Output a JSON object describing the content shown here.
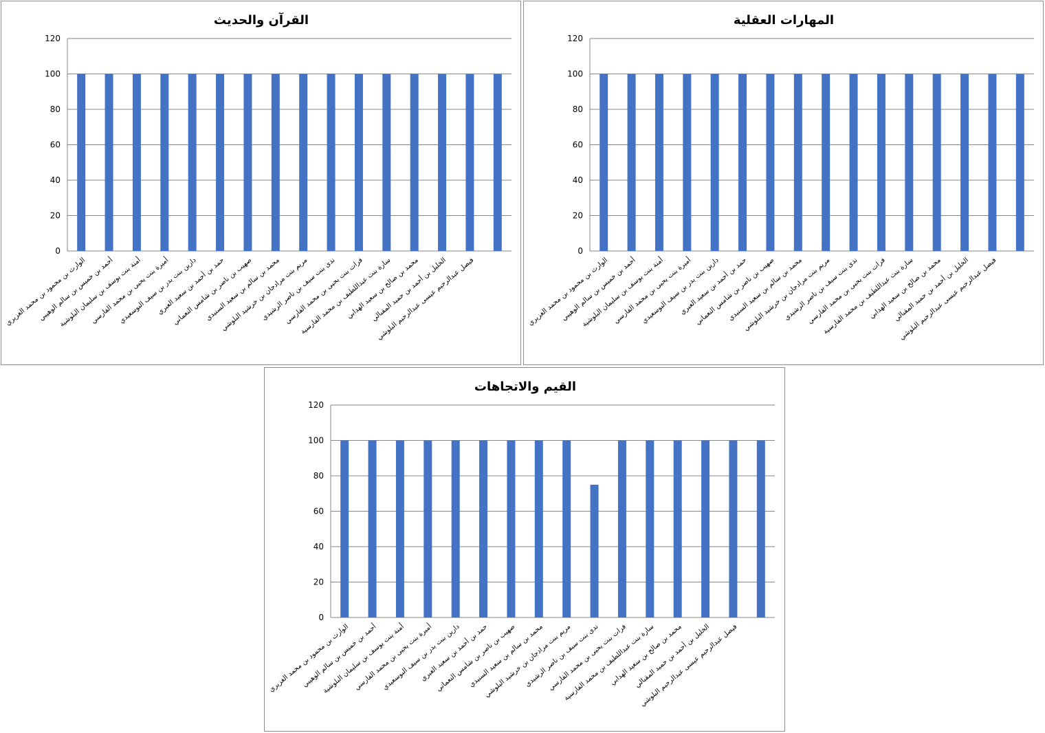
{
  "colors": {
    "bar": "#4472C4",
    "grid": "#868686",
    "border": "#8c8c8c"
  },
  "chart_data": [
    {
      "type": "bar",
      "title": "القرآن والحديث",
      "xlabel": "",
      "ylabel": "",
      "ylim": [
        0,
        120
      ],
      "yticks": [
        0,
        20,
        40,
        60,
        80,
        100,
        120
      ],
      "grid": true,
      "legend": "none",
      "categories": [
        "الوارث بن محمود بن محمد الغزيري",
        "أحمد بن خميس بن سالم الوهيبي",
        "أمنة بنت يوسف بن سليمان البلوشية",
        "أميرة بنت يحيى بن محمد الفارسي",
        "دارين بنت بدر بن سيف البوسعيدي",
        "حمد بن أحمد بن سعيد العبري",
        "صهيب بن ناصر بن شامس النعماني",
        "محمد بن سالم بن سعيد السنيدي",
        "مريم بنت مرادجان بن خرشيد البلوشي",
        "ندى بنت سيف بن ناصر الرشيدي",
        "فرات بنت يحيى بن محمد الفارسي",
        "سارة بنت عبداللطيف بن محمد الفارسية",
        "محمد بن صالح بن سعيد الهدابي",
        "الخليل بن أحمد بن حميد المقبالي",
        "فيصل عبدالرحيم عيسى عبدالرحيم البلوشي",
        ""
      ],
      "values": [
        100,
        100,
        100,
        100,
        100,
        100,
        100,
        100,
        100,
        100,
        100,
        100,
        100,
        100,
        100,
        100
      ]
    },
    {
      "type": "bar",
      "title": "المهارات العقلية",
      "xlabel": "",
      "ylabel": "",
      "ylim": [
        0,
        120
      ],
      "yticks": [
        0,
        20,
        40,
        60,
        80,
        100,
        120
      ],
      "grid": true,
      "legend": "none",
      "categories": [
        "الوارث بن محمود بن محمد الغزيري",
        "أحمد بن خميس بن سالم الوهيبي",
        "أمنة بنت يوسف بن سليمان البلوشية",
        "أميرة بنت يحيى بن محمد الفارسي",
        "دارين بنت بدر بن سيف البوسعيدي",
        "حمد بن أحمد بن سعيد العبري",
        "صهيب بن ناصر بن شامس النعماني",
        "محمد بن سالم بن سعيد السنيدي",
        "مريم بنت مرادجان بن خرشيد البلوشي",
        "ندى بنت سيف بن ناصر الرشيدي",
        "فرات بنت يحيى بن محمد الفارسي",
        "سارة بنت عبداللطيف بن محمد الفارسية",
        "محمد بن صالح بن سعيد الهدابي",
        "الخليل بن أحمد بن حميد المقبالي",
        "فيصل عبدالرحيم عيسى عبدالرحيم البلوشي",
        ""
      ],
      "values": [
        100,
        100,
        100,
        100,
        100,
        100,
        100,
        100,
        100,
        100,
        100,
        100,
        100,
        100,
        100,
        100
      ]
    },
    {
      "type": "bar",
      "title": "القيم والاتجاهات",
      "xlabel": "",
      "ylabel": "",
      "ylim": [
        0,
        120
      ],
      "yticks": [
        0,
        20,
        40,
        60,
        80,
        100,
        120
      ],
      "grid": true,
      "legend": "none",
      "categories": [
        "الوارث بن محمود بن محمد الغزيري",
        "أحمد بن خميس بن سالم الوهيبي",
        "أمنة بنت يوسف بن سليمان البلوشية",
        "أميرة بنت يحيى بن محمد الفارسي",
        "دارين بنت بدر بن سيف البوسعيدي",
        "حمد بن أحمد بن سعيد العبري",
        "صهيب بن ناصر بن شامس النعماني",
        "محمد بن سالم بن سعيد السنيدي",
        "مريم بنت مرادجان بن خرشيد البلوشي",
        "ندى بنت سيف بن ناصر الرشيدي",
        "فرات بنت يحيى بن محمد الفارسي",
        "سارة بنت عبداللطيف بن محمد الفارسية",
        "محمد بن صالح بن سعيد الهدابي",
        "الخليل بن أحمد بن حميد المقبالي",
        "فيصل عبدالرحيم عيسى عبدالرحيم البلوشي",
        ""
      ],
      "values": [
        100,
        100,
        100,
        100,
        100,
        100,
        100,
        100,
        100,
        75,
        100,
        100,
        100,
        100,
        100,
        100
      ]
    }
  ]
}
